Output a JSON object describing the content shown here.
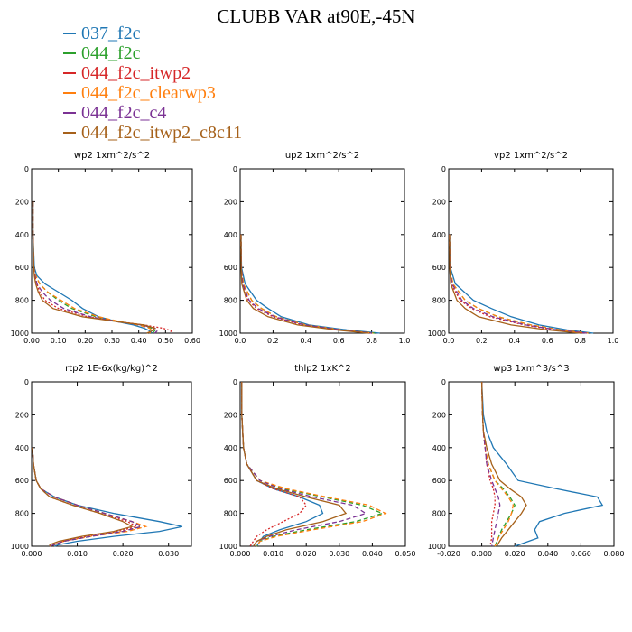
{
  "title": "CLUBB VAR at90E,-45N",
  "legend": [
    {
      "name": "037_f2c",
      "color": "#1f77b4",
      "dash": "solid"
    },
    {
      "name": "044_f2c",
      "color": "#2ca02c",
      "dash": "dashed"
    },
    {
      "name": "044_f2c_itwp2",
      "color": "#d62728",
      "dash": "dotted"
    },
    {
      "name": "044_f2c_clearwp3",
      "color": "#ff7f0e",
      "dash": "dashed"
    },
    {
      "name": "044_f2c_c4",
      "color": "#7b3294",
      "dash": "dashed"
    },
    {
      "name": "044_f2c_itwp2_c8c11",
      "color": "#a6611a",
      "dash": "solid"
    }
  ],
  "chart_data": [
    {
      "type": "line",
      "title": "wp2  1xm^2/s^2",
      "xlim": [
        0,
        0.6
      ],
      "ylim": [
        1000,
        0
      ],
      "xticks": [
        "0.00",
        "0.10",
        "0.20",
        "0.30",
        "0.40",
        "0.50",
        "0.60"
      ],
      "yticks": [
        "0",
        "200",
        "400",
        "600",
        "800",
        "1000"
      ],
      "y": [
        200,
        400,
        600,
        650,
        700,
        750,
        800,
        850,
        900,
        930,
        950,
        970,
        985,
        1000
      ],
      "series": [
        {
          "name": "037_f2c",
          "values": [
            0.005,
            0.005,
            0.01,
            0.02,
            0.05,
            0.1,
            0.15,
            0.19,
            0.25,
            0.32,
            0.38,
            0.42,
            0.44,
            0.45
          ]
        },
        {
          "name": "044_f2c",
          "values": [
            0.005,
            0.005,
            0.008,
            0.015,
            0.03,
            0.06,
            0.1,
            0.15,
            0.24,
            0.33,
            0.4,
            0.45,
            0.46,
            0.45
          ]
        },
        {
          "name": "044_f2c_itwp2",
          "values": [
            0.005,
            0.005,
            0.008,
            0.012,
            0.02,
            0.03,
            0.05,
            0.1,
            0.21,
            0.33,
            0.42,
            0.49,
            0.52,
            0.52
          ]
        },
        {
          "name": "044_f2c_clearwp3",
          "values": [
            0.005,
            0.005,
            0.008,
            0.015,
            0.03,
            0.06,
            0.11,
            0.16,
            0.25,
            0.33,
            0.4,
            0.44,
            0.45,
            0.44
          ]
        },
        {
          "name": "044_f2c_c4",
          "values": [
            0.005,
            0.005,
            0.008,
            0.012,
            0.02,
            0.04,
            0.07,
            0.12,
            0.22,
            0.32,
            0.41,
            0.46,
            0.47,
            0.46
          ]
        },
        {
          "name": "044_f2c_itwp2_c8c11",
          "values": [
            0.005,
            0.005,
            0.008,
            0.01,
            0.015,
            0.025,
            0.04,
            0.08,
            0.19,
            0.32,
            0.42,
            0.46,
            0.45,
            0.43
          ]
        }
      ]
    },
    {
      "type": "line",
      "title": "up2  1xm^2/s^2",
      "xlim": [
        0,
        1.0
      ],
      "ylim": [
        1000,
        0
      ],
      "xticks": [
        "0.0",
        "0.2",
        "0.4",
        "0.6",
        "0.8",
        "1.0"
      ],
      "yticks": [
        "0",
        "200",
        "400",
        "600",
        "800",
        "1000"
      ],
      "y": [
        400,
        600,
        700,
        800,
        850,
        900,
        950,
        980,
        1000
      ],
      "series": [
        {
          "name": "037_f2c",
          "values": [
            0.005,
            0.008,
            0.03,
            0.1,
            0.17,
            0.25,
            0.42,
            0.65,
            0.85
          ]
        },
        {
          "name": "044_f2c",
          "values": [
            0.005,
            0.007,
            0.02,
            0.07,
            0.13,
            0.22,
            0.4,
            0.62,
            0.82
          ]
        },
        {
          "name": "044_f2c_itwp2",
          "values": [
            0.005,
            0.007,
            0.015,
            0.05,
            0.1,
            0.2,
            0.38,
            0.6,
            0.8
          ]
        },
        {
          "name": "044_f2c_clearwp3",
          "values": [
            0.005,
            0.007,
            0.02,
            0.07,
            0.13,
            0.22,
            0.4,
            0.62,
            0.81
          ]
        },
        {
          "name": "044_f2c_c4",
          "values": [
            0.005,
            0.007,
            0.015,
            0.055,
            0.11,
            0.21,
            0.39,
            0.61,
            0.8
          ]
        },
        {
          "name": "044_f2c_itwp2_c8c11",
          "values": [
            0.005,
            0.006,
            0.01,
            0.04,
            0.08,
            0.17,
            0.35,
            0.58,
            0.78
          ]
        }
      ]
    },
    {
      "type": "line",
      "title": "vp2  1xm^2/s^2",
      "xlim": [
        0,
        1.0
      ],
      "ylim": [
        1000,
        0
      ],
      "xticks": [
        "0.0",
        "0.2",
        "0.4",
        "0.6",
        "0.8",
        "1.0"
      ],
      "yticks": [
        "0",
        "200",
        "400",
        "600",
        "800",
        "1000"
      ],
      "y": [
        400,
        600,
        700,
        800,
        850,
        900,
        950,
        980,
        1000
      ],
      "series": [
        {
          "name": "037_f2c",
          "values": [
            0.005,
            0.01,
            0.04,
            0.15,
            0.26,
            0.38,
            0.55,
            0.72,
            0.88
          ]
        },
        {
          "name": "044_f2c",
          "values": [
            0.005,
            0.008,
            0.025,
            0.1,
            0.18,
            0.3,
            0.5,
            0.68,
            0.85
          ]
        },
        {
          "name": "044_f2c_itwp2",
          "values": [
            0.005,
            0.007,
            0.015,
            0.07,
            0.14,
            0.25,
            0.46,
            0.65,
            0.83
          ]
        },
        {
          "name": "044_f2c_clearwp3",
          "values": [
            0.005,
            0.008,
            0.025,
            0.1,
            0.18,
            0.3,
            0.5,
            0.68,
            0.85
          ]
        },
        {
          "name": "044_f2c_c4",
          "values": [
            0.005,
            0.007,
            0.02,
            0.08,
            0.15,
            0.27,
            0.47,
            0.66,
            0.84
          ]
        },
        {
          "name": "044_f2c_itwp2_c8c11",
          "values": [
            0.005,
            0.006,
            0.012,
            0.05,
            0.1,
            0.18,
            0.38,
            0.6,
            0.8
          ]
        }
      ]
    },
    {
      "type": "line",
      "title": "rtp2  1E-6x(kg/kg)^2",
      "xlim": [
        0,
        0.035
      ],
      "ylim": [
        1000,
        0
      ],
      "xticks": [
        "0.000",
        "0.010",
        "0.020",
        "0.030"
      ],
      "yticks": [
        "0",
        "200",
        "400",
        "600",
        "800",
        "1000"
      ],
      "y": [
        400,
        500,
        600,
        650,
        700,
        750,
        800,
        850,
        880,
        910,
        940,
        970,
        990,
        1000
      ],
      "series": [
        {
          "name": "037_f2c",
          "values": [
            0.0002,
            0.0004,
            0.001,
            0.002,
            0.005,
            0.01,
            0.018,
            0.028,
            0.033,
            0.028,
            0.018,
            0.01,
            0.006,
            0.005
          ]
        },
        {
          "name": "044_f2c",
          "values": [
            0.0002,
            0.0004,
            0.001,
            0.002,
            0.005,
            0.01,
            0.016,
            0.022,
            0.024,
            0.02,
            0.013,
            0.007,
            0.005,
            0.004
          ]
        },
        {
          "name": "044_f2c_itwp2",
          "values": [
            0.0002,
            0.0004,
            0.001,
            0.002,
            0.004,
            0.009,
            0.015,
            0.021,
            0.023,
            0.019,
            0.012,
            0.007,
            0.005,
            0.004
          ]
        },
        {
          "name": "044_f2c_clearwp3",
          "values": [
            0.0002,
            0.0004,
            0.001,
            0.002,
            0.005,
            0.01,
            0.016,
            0.022,
            0.025,
            0.021,
            0.013,
            0.007,
            0.005,
            0.004
          ]
        },
        {
          "name": "044_f2c_c4",
          "values": [
            0.0002,
            0.0004,
            0.001,
            0.002,
            0.005,
            0.01,
            0.016,
            0.022,
            0.024,
            0.02,
            0.013,
            0.007,
            0.005,
            0.004
          ]
        },
        {
          "name": "044_f2c_itwp2_c8c11",
          "values": [
            0.0002,
            0.0004,
            0.001,
            0.002,
            0.004,
            0.009,
            0.015,
            0.02,
            0.022,
            0.018,
            0.011,
            0.006,
            0.004,
            0.004
          ]
        }
      ]
    },
    {
      "type": "line",
      "title": "thlp2  1xK^2",
      "xlim": [
        0,
        0.05
      ],
      "ylim": [
        1000,
        0
      ],
      "xticks": [
        "0.000",
        "0.010",
        "0.020",
        "0.030",
        "0.040",
        "0.050"
      ],
      "yticks": [
        "0",
        "200",
        "400",
        "600",
        "800",
        "1000"
      ],
      "y": [
        0,
        200,
        400,
        500,
        600,
        650,
        700,
        750,
        800,
        850,
        900,
        940,
        970,
        1000
      ],
      "series": [
        {
          "name": "037_f2c",
          "values": [
            0.0005,
            0.0005,
            0.001,
            0.002,
            0.005,
            0.01,
            0.018,
            0.024,
            0.025,
            0.02,
            0.012,
            0.007,
            0.006,
            0.005
          ]
        },
        {
          "name": "044_f2c",
          "values": [
            0.0005,
            0.0005,
            0.001,
            0.002,
            0.006,
            0.013,
            0.025,
            0.037,
            0.043,
            0.035,
            0.02,
            0.01,
            0.006,
            0.005
          ]
        },
        {
          "name": "044_f2c_itwp2",
          "values": [
            0.0005,
            0.0005,
            0.001,
            0.002,
            0.005,
            0.01,
            0.018,
            0.02,
            0.018,
            0.013,
            0.008,
            0.005,
            0.004,
            0.003
          ]
        },
        {
          "name": "044_f2c_clearwp3",
          "values": [
            0.0005,
            0.0005,
            0.001,
            0.002,
            0.006,
            0.014,
            0.026,
            0.039,
            0.044,
            0.037,
            0.022,
            0.011,
            0.006,
            0.005
          ]
        },
        {
          "name": "044_f2c_c4",
          "values": [
            0.0005,
            0.0005,
            0.001,
            0.002,
            0.006,
            0.012,
            0.022,
            0.034,
            0.038,
            0.03,
            0.017,
            0.009,
            0.005,
            0.004
          ]
        },
        {
          "name": "044_f2c_itwp2_c8c11",
          "values": [
            0.0005,
            0.0005,
            0.001,
            0.002,
            0.005,
            0.011,
            0.02,
            0.03,
            0.032,
            0.025,
            0.014,
            0.008,
            0.005,
            0.004
          ]
        }
      ]
    },
    {
      "type": "line",
      "title": "wp3  1xm^3/s^3",
      "xlim": [
        -0.02,
        0.08
      ],
      "ylim": [
        1000,
        0
      ],
      "xticks": [
        "-0.020",
        "0.000",
        "0.020",
        "0.040",
        "0.060",
        "0.080"
      ],
      "yticks": [
        "0",
        "200",
        "400",
        "600",
        "800",
        "1000"
      ],
      "y": [
        0,
        200,
        300,
        400,
        500,
        600,
        650,
        700,
        750,
        800,
        850,
        900,
        950,
        1000
      ],
      "series": [
        {
          "name": "037_f2c",
          "values": [
            0,
            0.001,
            0.003,
            0.007,
            0.015,
            0.022,
            0.045,
            0.07,
            0.073,
            0.05,
            0.035,
            0.032,
            0.034,
            0.02
          ]
        },
        {
          "name": "044_f2c",
          "values": [
            0,
            0.0005,
            0.001,
            0.002,
            0.004,
            0.008,
            0.013,
            0.017,
            0.02,
            0.018,
            0.015,
            0.012,
            0.01,
            0.008
          ]
        },
        {
          "name": "044_f2c_itwp2",
          "values": [
            0,
            0.0005,
            0.001,
            0.002,
            0.003,
            0.005,
            0.007,
            0.008,
            0.008,
            0.007,
            0.006,
            0.006,
            0.006,
            0.005
          ]
        },
        {
          "name": "044_f2c_clearwp3",
          "values": [
            0,
            0.0005,
            0.001,
            0.002,
            0.004,
            0.008,
            0.012,
            0.016,
            0.019,
            0.018,
            0.016,
            0.013,
            0.01,
            0.008
          ]
        },
        {
          "name": "044_f2c_c4",
          "values": [
            0,
            0.0005,
            0.001,
            0.002,
            0.003,
            0.006,
            0.008,
            0.01,
            0.011,
            0.01,
            0.009,
            0.008,
            0.007,
            0.006
          ]
        },
        {
          "name": "044_f2c_itwp2_c8c11",
          "values": [
            0,
            0.0005,
            0.001,
            0.003,
            0.006,
            0.011,
            0.017,
            0.024,
            0.027,
            0.024,
            0.02,
            0.016,
            0.012,
            0.009
          ]
        }
      ]
    }
  ]
}
